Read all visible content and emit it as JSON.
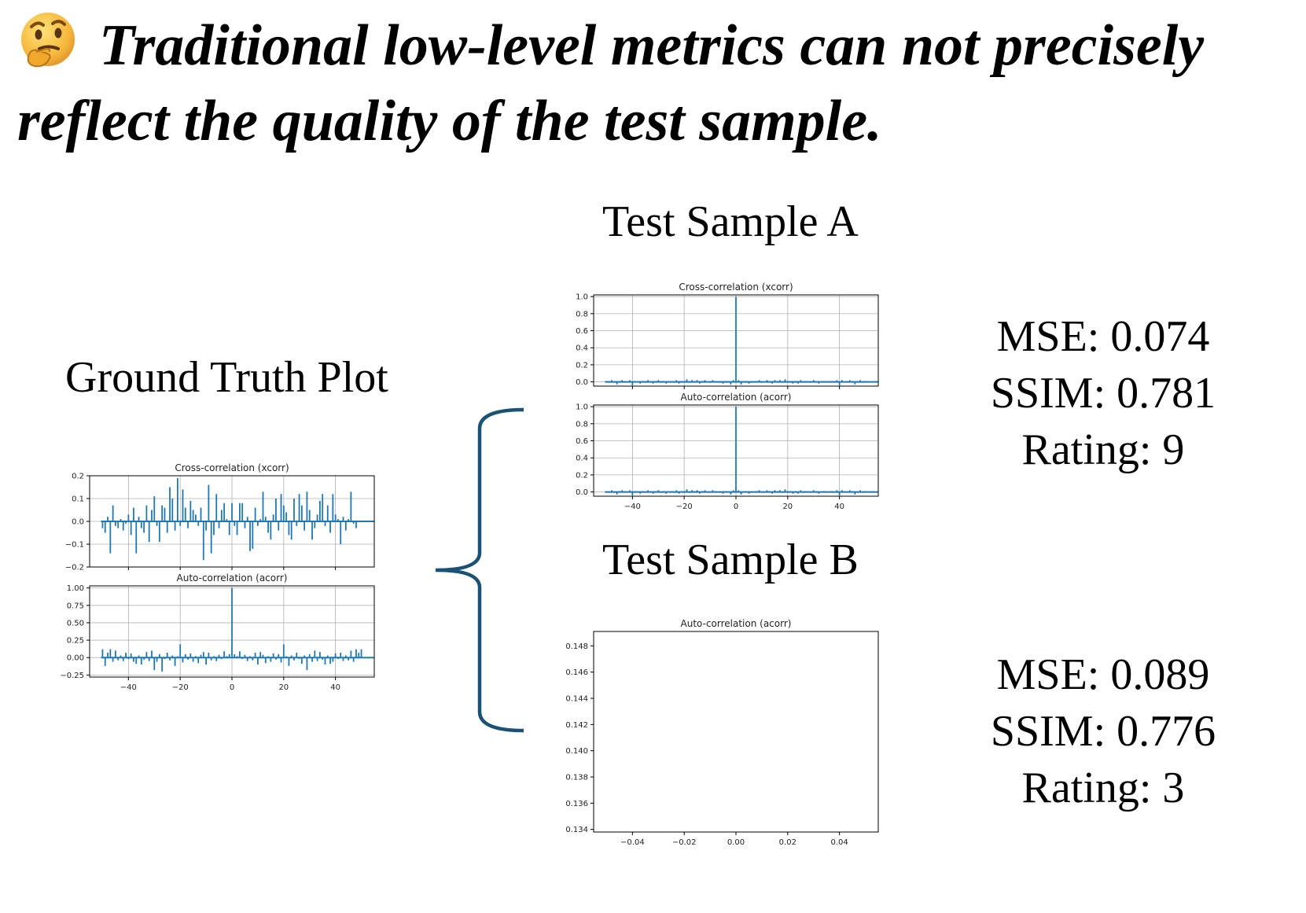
{
  "headline": {
    "icon": "thinking-face-icon",
    "line1": "Traditional low-level metrics can not precisely",
    "line2": "reflect the quality of the test sample."
  },
  "ground_truth": {
    "label": "Ground Truth Plot"
  },
  "sample_a": {
    "label": "Test Sample A",
    "metrics": {
      "mse": "MSE: 0.074",
      "ssim": "SSIM: 0.781",
      "rating": "Rating: 9"
    }
  },
  "sample_b": {
    "label": "Test Sample B",
    "metrics": {
      "mse": "MSE: 0.089",
      "ssim": "SSIM: 0.776",
      "rating": "Rating: 3"
    }
  },
  "colors": {
    "series": "#1f77b4",
    "brace": "#1a5276",
    "grid": "#b0b0b0"
  },
  "chart_data": [
    {
      "id": "gt-xcorr",
      "type": "bar",
      "title": "Cross-correlation (xcorr)",
      "x_range": [
        -55,
        55
      ],
      "ylim": [
        -0.2,
        0.2
      ],
      "yticks": [
        -0.2,
        -0.1,
        0.0,
        0.1,
        0.2
      ],
      "ytick_labels": [
        "−0.2",
        "−0.1",
        "0.0",
        "0.1",
        "0.2"
      ],
      "xticks": [
        -40,
        -20,
        0,
        20,
        40
      ],
      "xtick_labels": [],
      "grid": true,
      "x": [
        -50,
        -49,
        -48,
        -47,
        -46,
        -45,
        -44,
        -43,
        -42,
        -41,
        -40,
        -39,
        -38,
        -37,
        -36,
        -35,
        -34,
        -33,
        -32,
        -31,
        -30,
        -29,
        -28,
        -27,
        -26,
        -25,
        -24,
        -23,
        -22,
        -21,
        -20,
        -19,
        -18,
        -17,
        -16,
        -15,
        -14,
        -13,
        -12,
        -11,
        -10,
        -9,
        -8,
        -7,
        -6,
        -5,
        -4,
        -3,
        -2,
        -1,
        0,
        1,
        2,
        3,
        4,
        5,
        6,
        7,
        8,
        9,
        10,
        11,
        12,
        13,
        14,
        15,
        16,
        17,
        18,
        19,
        20,
        21,
        22,
        23,
        24,
        25,
        26,
        27,
        28,
        29,
        30,
        31,
        32,
        33,
        34,
        35,
        36,
        37,
        38,
        39,
        40,
        41,
        42,
        43,
        44,
        45,
        46,
        47,
        48,
        49,
        50
      ],
      "values": [
        -0.03,
        -0.05,
        0.02,
        -0.14,
        0.07,
        -0.02,
        -0.03,
        0.01,
        -0.04,
        -0.01,
        0.03,
        -0.06,
        0.06,
        -0.14,
        0.02,
        -0.03,
        -0.05,
        0.07,
        -0.09,
        0.05,
        0.11,
        -0.02,
        -0.09,
        0.07,
        0.06,
        -0.05,
        0.15,
        0.1,
        -0.04,
        0.19,
        -0.02,
        0.14,
        0.06,
        -0.03,
        0.09,
        0.05,
        0.03,
        -0.02,
        0.06,
        -0.17,
        -0.04,
        0.16,
        -0.14,
        -0.06,
        0.12,
        -0.03,
        0.05,
        0.08,
        0.01,
        -0.06,
        0.08,
        -0.02,
        -0.06,
        0.08,
        0.08,
        -0.03,
        0.02,
        -0.13,
        -0.12,
        0.06,
        -0.02,
        0.01,
        0.13,
        0.02,
        -0.05,
        -0.08,
        0.03,
        0.1,
        -0.04,
        0.12,
        0.07,
        0.04,
        -0.06,
        -0.08,
        0.1,
        -0.02,
        0.12,
        0.07,
        -0.04,
        0.13,
        0.05,
        -0.08,
        -0.03,
        0.03,
        0.09,
        0.12,
        -0.02,
        0.07,
        -0.05,
        0.12,
        0.03,
        0.01,
        -0.1,
        0.02,
        -0.04,
        0.01,
        0.13,
        -0.01,
        -0.03,
        0.0,
        0.0
      ]
    },
    {
      "id": "gt-acorr",
      "type": "bar",
      "title": "Auto-correlation (acorr)",
      "x_range": [
        -55,
        55
      ],
      "ylim": [
        -0.28,
        1.03
      ],
      "yticks": [
        -0.25,
        0.0,
        0.25,
        0.5,
        0.75,
        1.0
      ],
      "ytick_labels": [
        "−0.25",
        "0.00",
        "0.25",
        "0.50",
        "0.75",
        "1.00"
      ],
      "xticks": [
        -40,
        -20,
        0,
        20,
        40
      ],
      "xtick_labels": [
        "−40",
        "−20",
        "0",
        "20",
        "40"
      ],
      "grid": true,
      "x": [
        -50,
        -49,
        -48,
        -47,
        -46,
        -45,
        -44,
        -43,
        -42,
        -41,
        -40,
        -39,
        -38,
        -37,
        -36,
        -35,
        -34,
        -33,
        -32,
        -31,
        -30,
        -29,
        -28,
        -27,
        -26,
        -25,
        -24,
        -23,
        -22,
        -21,
        -20,
        -19,
        -18,
        -17,
        -16,
        -15,
        -14,
        -13,
        -12,
        -11,
        -10,
        -9,
        -8,
        -7,
        -6,
        -5,
        -4,
        -3,
        -2,
        -1,
        0,
        1,
        2,
        3,
        4,
        5,
        6,
        7,
        8,
        9,
        10,
        11,
        12,
        13,
        14,
        15,
        16,
        17,
        18,
        19,
        20,
        21,
        22,
        23,
        24,
        25,
        26,
        27,
        28,
        29,
        30,
        31,
        32,
        33,
        34,
        35,
        36,
        37,
        38,
        39,
        40,
        41,
        42,
        43,
        44,
        45,
        46,
        47,
        48,
        49,
        50
      ],
      "values": [
        0.12,
        -0.12,
        0.07,
        0.12,
        -0.06,
        0.1,
        -0.04,
        0.03,
        -0.05,
        0.07,
        -0.02,
        0.06,
        -0.06,
        -0.09,
        0.03,
        -0.1,
        -0.03,
        0.08,
        -0.05,
        0.1,
        -0.18,
        -0.06,
        0.05,
        -0.2,
        -0.02,
        0.07,
        -0.04,
        0.03,
        -0.12,
        0.02,
        0.19,
        -0.07,
        0.05,
        -0.03,
        0.06,
        -0.06,
        0.02,
        -0.08,
        0.04,
        0.08,
        -0.1,
        0.07,
        -0.04,
        0.02,
        -0.05,
        0.04,
        -0.02,
        0.09,
        0.02,
        0.05,
        1.0,
        0.05,
        0.02,
        0.09,
        -0.02,
        0.04,
        -0.05,
        0.02,
        -0.04,
        0.07,
        -0.1,
        0.08,
        0.04,
        -0.08,
        0.02,
        -0.06,
        0.06,
        -0.03,
        0.05,
        -0.07,
        0.19,
        0.02,
        -0.12,
        0.03,
        -0.04,
        0.07,
        -0.02,
        -0.09,
        0.03,
        -0.18,
        0.05,
        -0.06,
        0.1,
        -0.05,
        0.08,
        -0.03,
        -0.1,
        0.03,
        -0.09,
        -0.06,
        0.06,
        -0.02,
        0.07,
        -0.05,
        0.03,
        -0.04,
        0.1,
        -0.06,
        0.12,
        0.07,
        0.12
      ]
    },
    {
      "id": "a-xcorr",
      "type": "bar",
      "title": "Cross-correlation (xcorr)",
      "x_range": [
        -55,
        55
      ],
      "ylim": [
        -0.05,
        1.02
      ],
      "yticks": [
        0.0,
        0.2,
        0.4,
        0.6,
        0.8,
        1.0
      ],
      "ytick_labels": [
        "0.0",
        "0.2",
        "0.4",
        "0.6",
        "0.8",
        "1.0"
      ],
      "xticks": [
        -40,
        -20,
        0,
        20,
        40
      ],
      "xtick_labels": [],
      "grid": true,
      "x": [
        -50,
        -49,
        -48,
        -47,
        -46,
        -45,
        -44,
        -43,
        -42,
        -41,
        -40,
        -39,
        -38,
        -37,
        -36,
        -35,
        -34,
        -33,
        -32,
        -31,
        -30,
        -29,
        -28,
        -27,
        -26,
        -25,
        -24,
        -23,
        -22,
        -21,
        -20,
        -19,
        -18,
        -17,
        -16,
        -15,
        -14,
        -13,
        -12,
        -11,
        -10,
        -9,
        -8,
        -7,
        -6,
        -5,
        -4,
        -3,
        -2,
        -1,
        0,
        1,
        2,
        3,
        4,
        5,
        6,
        7,
        8,
        9,
        10,
        11,
        12,
        13,
        14,
        15,
        16,
        17,
        18,
        19,
        20,
        21,
        22,
        23,
        24,
        25,
        26,
        27,
        28,
        29,
        30,
        31,
        32,
        33,
        34,
        35,
        36,
        37,
        38,
        39,
        40,
        41,
        42,
        43,
        44,
        45,
        46,
        47,
        48,
        49,
        50
      ],
      "values": [
        0.01,
        -0.01,
        0.02,
        -0.01,
        -0.03,
        0.01,
        0.02,
        -0.01,
        0.0,
        0.02,
        -0.04,
        0.01,
        0.0,
        -0.02,
        0.01,
        -0.01,
        0.02,
        0.0,
        -0.02,
        0.01,
        0.02,
        -0.01,
        0.01,
        -0.02,
        0.0,
        0.01,
        -0.01,
        0.02,
        -0.02,
        0.01,
        0.01,
        0.03,
        -0.01,
        0.02,
        0.01,
        0.02,
        -0.02,
        0.01,
        0.02,
        0.0,
        -0.01,
        0.02,
        0.01,
        0.0,
        -0.01,
        -0.02,
        0.01,
        0.0,
        -0.03,
        0.02,
        1.0,
        0.02,
        -0.03,
        0.0,
        0.01,
        -0.02,
        -0.01,
        0.0,
        0.01,
        0.02,
        -0.01,
        0.0,
        0.02,
        0.01,
        -0.02,
        0.02,
        0.01,
        0.02,
        -0.01,
        0.03,
        0.01,
        0.01,
        -0.02,
        0.01,
        -0.02,
        0.02,
        -0.01,
        0.01,
        0.0,
        -0.01,
        0.02,
        0.01,
        -0.02,
        0.0,
        0.01,
        -0.01,
        0.0,
        0.01,
        -0.01,
        0.02,
        -0.04,
        0.02,
        0.0,
        -0.01,
        0.02,
        0.01,
        -0.03,
        -0.01,
        0.02,
        -0.01,
        0.01
      ]
    },
    {
      "id": "a-acorr",
      "type": "bar",
      "title": "Auto-correlation (acorr)",
      "x_range": [
        -55,
        55
      ],
      "ylim": [
        -0.05,
        1.02
      ],
      "yticks": [
        0.0,
        0.2,
        0.4,
        0.6,
        0.8,
        1.0
      ],
      "ytick_labels": [
        "0.0",
        "0.2",
        "0.4",
        "0.6",
        "0.8",
        "1.0"
      ],
      "xticks": [
        -40,
        -20,
        0,
        20,
        40
      ],
      "xtick_labels": [
        "−40",
        "−20",
        "0",
        "20",
        "40"
      ],
      "grid": true,
      "x": [
        -50,
        -49,
        -48,
        -47,
        -46,
        -45,
        -44,
        -43,
        -42,
        -41,
        -40,
        -39,
        -38,
        -37,
        -36,
        -35,
        -34,
        -33,
        -32,
        -31,
        -30,
        -29,
        -28,
        -27,
        -26,
        -25,
        -24,
        -23,
        -22,
        -21,
        -20,
        -19,
        -18,
        -17,
        -16,
        -15,
        -14,
        -13,
        -12,
        -11,
        -10,
        -9,
        -8,
        -7,
        -6,
        -5,
        -4,
        -3,
        -2,
        -1,
        0,
        1,
        2,
        3,
        4,
        5,
        6,
        7,
        8,
        9,
        10,
        11,
        12,
        13,
        14,
        15,
        16,
        17,
        18,
        19,
        20,
        21,
        22,
        23,
        24,
        25,
        26,
        27,
        28,
        29,
        30,
        31,
        32,
        33,
        34,
        35,
        36,
        37,
        38,
        39,
        40,
        41,
        42,
        43,
        44,
        45,
        46,
        47,
        48,
        49,
        50
      ],
      "values": [
        0.01,
        -0.01,
        0.02,
        -0.01,
        -0.03,
        0.01,
        0.02,
        -0.01,
        0.0,
        0.02,
        -0.04,
        0.01,
        0.0,
        -0.02,
        0.01,
        -0.01,
        0.02,
        0.0,
        -0.02,
        0.01,
        0.02,
        -0.01,
        0.01,
        -0.02,
        0.0,
        0.01,
        -0.01,
        0.02,
        -0.02,
        0.01,
        0.01,
        0.03,
        -0.01,
        0.02,
        0.01,
        0.02,
        -0.02,
        0.01,
        0.02,
        0.0,
        -0.01,
        0.02,
        0.01,
        0.0,
        -0.01,
        -0.02,
        0.01,
        0.0,
        -0.03,
        0.02,
        1.0,
        0.02,
        -0.03,
        0.0,
        0.01,
        -0.02,
        -0.01,
        0.0,
        0.01,
        0.02,
        -0.01,
        0.0,
        0.02,
        0.01,
        -0.02,
        0.02,
        0.01,
        0.02,
        -0.01,
        0.03,
        0.01,
        0.01,
        -0.02,
        0.01,
        -0.02,
        0.02,
        -0.01,
        0.01,
        0.0,
        -0.01,
        0.02,
        0.01,
        -0.02,
        0.0,
        0.01,
        -0.01,
        0.0,
        0.01,
        -0.01,
        0.02,
        -0.04,
        0.02,
        0.0,
        -0.01,
        0.02,
        0.01,
        -0.03,
        -0.01,
        0.02,
        -0.01,
        0.01
      ]
    },
    {
      "id": "b-acorr",
      "type": "bar",
      "title": "Auto-correlation (acorr)",
      "x_range": [
        -0.055,
        0.055
      ],
      "ylim": [
        0.1338,
        0.1491
      ],
      "yticks": [
        0.134,
        0.136,
        0.138,
        0.14,
        0.142,
        0.144,
        0.146,
        0.148
      ],
      "ytick_labels": [
        "0.134",
        "0.136",
        "0.138",
        "0.140",
        "0.142",
        "0.144",
        "0.146",
        "0.148"
      ],
      "xticks": [
        -0.04,
        -0.02,
        0.0,
        0.02,
        0.04
      ],
      "xtick_labels": [
        "−0.04",
        "−0.02",
        "0.00",
        "0.02",
        "0.04"
      ],
      "grid": false,
      "x": [],
      "values": []
    }
  ]
}
